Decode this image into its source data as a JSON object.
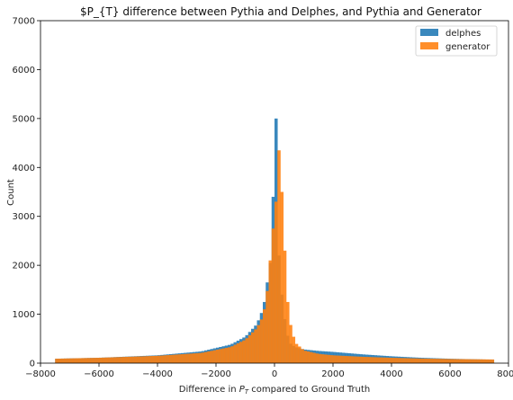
{
  "chart_data": {
    "type": "bar",
    "title": "$P_{T} difference between Pythia and Delphes, and Pythia and Generator",
    "xlabel": "Difference in P_T compared to Ground Truth",
    "xlabel_prefix": "Difference in ",
    "xlabel_symbol": "P",
    "xlabel_subscript": "T",
    "xlabel_suffix": " compared to Ground Truth",
    "ylabel": "Count",
    "xlim": [
      -8000,
      8000
    ],
    "ylim": [
      0,
      7000
    ],
    "xticks": [
      -8000,
      -6000,
      -4000,
      -2000,
      0,
      2000,
      4000,
      6000,
      8000
    ],
    "xtick_labels": [
      "−8000",
      "−6000",
      "−4000",
      "−2000",
      "0",
      "2000",
      "4000",
      "6000",
      "8000"
    ],
    "yticks": [
      0,
      1000,
      2000,
      3000,
      4000,
      5000,
      6000,
      7000
    ],
    "ytick_labels": [
      "0",
      "1000",
      "2000",
      "3000",
      "4000",
      "5000",
      "6000",
      "7000"
    ],
    "grid": false,
    "legend_position": "top-right",
    "bins": {
      "start": -7500,
      "end": 7500,
      "count": 150
    },
    "series": [
      {
        "name": "delphes",
        "color": "#1f77b4",
        "profile": {
          "points": [
            [
              -7500,
              90
            ],
            [
              -6000,
              110
            ],
            [
              -4000,
              160
            ],
            [
              -2500,
              240
            ],
            [
              -1500,
              380
            ],
            [
              -1000,
              540
            ],
            [
              -600,
              800
            ],
            [
              -400,
              1100
            ],
            [
              -300,
              1400
            ],
            [
              -200,
              1900
            ],
            [
              -100,
              2200
            ],
            [
              -50,
              3400
            ],
            [
              0,
              5800
            ],
            [
              50,
              5000
            ],
            [
              100,
              3400
            ],
            [
              150,
              2200
            ],
            [
              200,
              1700
            ],
            [
              300,
              1100
            ],
            [
              400,
              700
            ],
            [
              500,
              420
            ],
            [
              700,
              330
            ],
            [
              1000,
              280
            ],
            [
              1500,
              250
            ],
            [
              2000,
              230
            ],
            [
              3000,
              180
            ],
            [
              4000,
              140
            ],
            [
              5000,
              110
            ],
            [
              6000,
              90
            ],
            [
              7500,
              70
            ]
          ]
        }
      },
      {
        "name": "generator",
        "color": "#ff7f0e",
        "profile": {
          "points": [
            [
              -7500,
              90
            ],
            [
              -6000,
              110
            ],
            [
              -4000,
              150
            ],
            [
              -2500,
              210
            ],
            [
              -1500,
              330
            ],
            [
              -1000,
              480
            ],
            [
              -600,
              720
            ],
            [
              -400,
              950
            ],
            [
              -300,
              1250
            ],
            [
              -200,
              1700
            ],
            [
              -100,
              2500
            ],
            [
              0,
              3000
            ],
            [
              50,
              3300
            ],
            [
              100,
              3900
            ],
            [
              150,
              4350
            ],
            [
              200,
              4050
            ],
            [
              250,
              3500
            ],
            [
              300,
              3000
            ],
            [
              400,
              1600
            ],
            [
              500,
              900
            ],
            [
              700,
              420
            ],
            [
              1000,
              260
            ],
            [
              1500,
              190
            ],
            [
              2000,
              160
            ],
            [
              3000,
              130
            ],
            [
              4000,
              110
            ],
            [
              5000,
              95
            ],
            [
              6000,
              85
            ],
            [
              7500,
              75
            ]
          ]
        }
      }
    ]
  }
}
